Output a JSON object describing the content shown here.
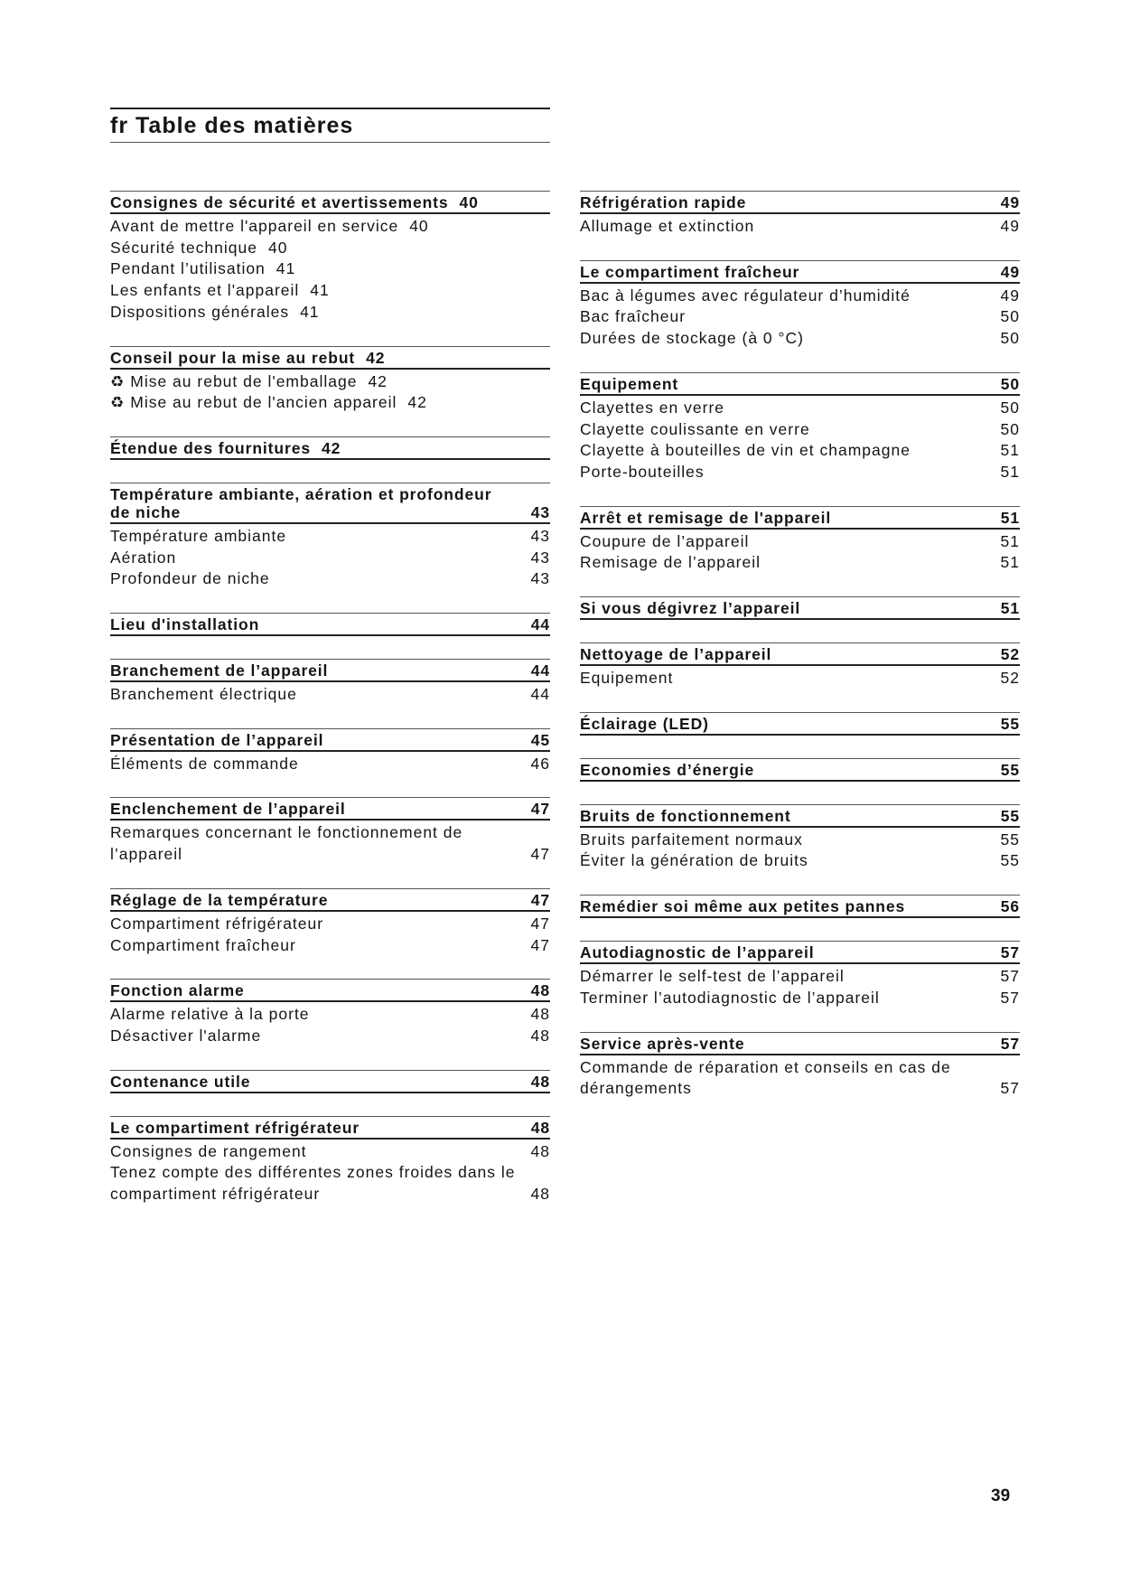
{
  "header": {
    "title": "fr Table des matières"
  },
  "page_number": "39",
  "columns": [
    {
      "sections": [
        {
          "title": "Consignes de sécurité et avertissements",
          "page": "40",
          "inline": true,
          "items": [
            {
              "title": "Avant de mettre l'appareil en service",
              "page": "40"
            },
            {
              "title": "Sécurité technique",
              "page": "40"
            },
            {
              "title": "Pendant l’utilisation",
              "page": "41"
            },
            {
              "title": "Les enfants et l'appareil",
              "page": "41"
            },
            {
              "title": "Dispositions générales",
              "page": "41"
            }
          ]
        },
        {
          "title": "Conseil pour la mise au rebut",
          "page": "42",
          "inline": true,
          "items": [
            {
              "title": "Mise au rebut de l'emballage",
              "page": "42",
              "icon": "recycle-icon"
            },
            {
              "title": "Mise au rebut de l'ancien appareil",
              "page": "42",
              "icon": "recycle-icon"
            }
          ]
        },
        {
          "title": "Étendue des fournitures",
          "page": "42",
          "inline": true,
          "items": []
        },
        {
          "title": "Température ambiante, aération et profondeur de niche",
          "page": "43",
          "items": [
            {
              "title": "Température ambiante",
              "page": "43"
            },
            {
              "title": "Aération",
              "page": "43"
            },
            {
              "title": "Profondeur de niche",
              "page": "43"
            }
          ]
        },
        {
          "title": "Lieu d'installation",
          "page": "44",
          "items": []
        },
        {
          "title": "Branchement de l’appareil",
          "page": "44",
          "items": [
            {
              "title": "Branchement électrique",
              "page": "44"
            }
          ]
        },
        {
          "title": "Présentation de l’appareil",
          "page": "45",
          "items": [
            {
              "title": "Éléments de commande",
              "page": "46"
            }
          ]
        },
        {
          "title": "Enclenchement de l’appareil",
          "page": "47",
          "items": [
            {
              "title": "Remarques concernant le fonctionnement de l’appareil",
              "page": "47"
            }
          ]
        },
        {
          "title": "Réglage de la température",
          "page": "47",
          "items": [
            {
              "title": "Compartiment réfrigérateur",
              "page": "47"
            },
            {
              "title": "Compartiment fraîcheur",
              "page": "47"
            }
          ]
        },
        {
          "title": "Fonction alarme",
          "page": "48",
          "items": [
            {
              "title": "Alarme relative à la porte",
              "page": "48"
            },
            {
              "title": "Désactiver l'alarme",
              "page": "48"
            }
          ]
        },
        {
          "title": "Contenance utile",
          "page": "48",
          "items": []
        },
        {
          "title": "Le compartiment réfrigérateur",
          "page": "48",
          "items": [
            {
              "title": "Consignes de rangement",
              "page": "48"
            },
            {
              "title": "Tenez compte des différentes zones froides dans le compartiment réfrigérateur",
              "page": "48"
            }
          ]
        }
      ]
    },
    {
      "sections": [
        {
          "title": "Réfrigération rapide",
          "page": "49",
          "items": [
            {
              "title": "Allumage et extinction",
              "page": "49"
            }
          ]
        },
        {
          "title": "Le compartiment fraîcheur",
          "page": "49",
          "items": [
            {
              "title": "Bac à légumes avec régulateur d’humidité",
              "page": "49"
            },
            {
              "title": "Bac fraîcheur",
              "page": "50"
            },
            {
              "title": "Durées de stockage (à 0 °C)",
              "page": "50"
            }
          ]
        },
        {
          "title": "Equipement",
          "page": "50",
          "items": [
            {
              "title": "Clayettes en verre",
              "page": "50"
            },
            {
              "title": "Clayette coulissante en verre",
              "page": "50"
            },
            {
              "title": "Clayette à bouteilles de vin et champagne",
              "page": "51"
            },
            {
              "title": "Porte-bouteilles",
              "page": "51"
            }
          ]
        },
        {
          "title": "Arrêt et remisage de l'appareil",
          "page": "51",
          "items": [
            {
              "title": "Coupure de l’appareil",
              "page": "51"
            },
            {
              "title": "Remisage de l’appareil",
              "page": "51"
            }
          ]
        },
        {
          "title": "Si vous dégivrez l’appareil",
          "page": "51",
          "items": []
        },
        {
          "title": "Nettoyage de l’appareil",
          "page": "52",
          "items": [
            {
              "title": "Equipement",
              "page": "52"
            }
          ]
        },
        {
          "title": "Éclairage (LED)",
          "page": "55",
          "items": []
        },
        {
          "title": "Economies d’énergie",
          "page": "55",
          "items": []
        },
        {
          "title": "Bruits de fonctionnement",
          "page": "55",
          "items": [
            {
              "title": "Bruits parfaitement normaux",
              "page": "55"
            },
            {
              "title": "Éviter la génération de bruits",
              "page": "55"
            }
          ]
        },
        {
          "title": "Remédier soi même aux petites pannes",
          "page": "56",
          "items": []
        },
        {
          "title": "Autodiagnostic de l’appareil",
          "page": "57",
          "items": [
            {
              "title": "Démarrer le self-test de l’appareil",
              "page": "57"
            },
            {
              "title": "Terminer l’autodiagnostic de l’appareil",
              "page": "57"
            }
          ]
        },
        {
          "title": "Service après-vente",
          "page": "57",
          "items": [
            {
              "title": "Commande de réparation et conseils en cas de dérangements",
              "page": "57"
            }
          ]
        }
      ]
    }
  ]
}
